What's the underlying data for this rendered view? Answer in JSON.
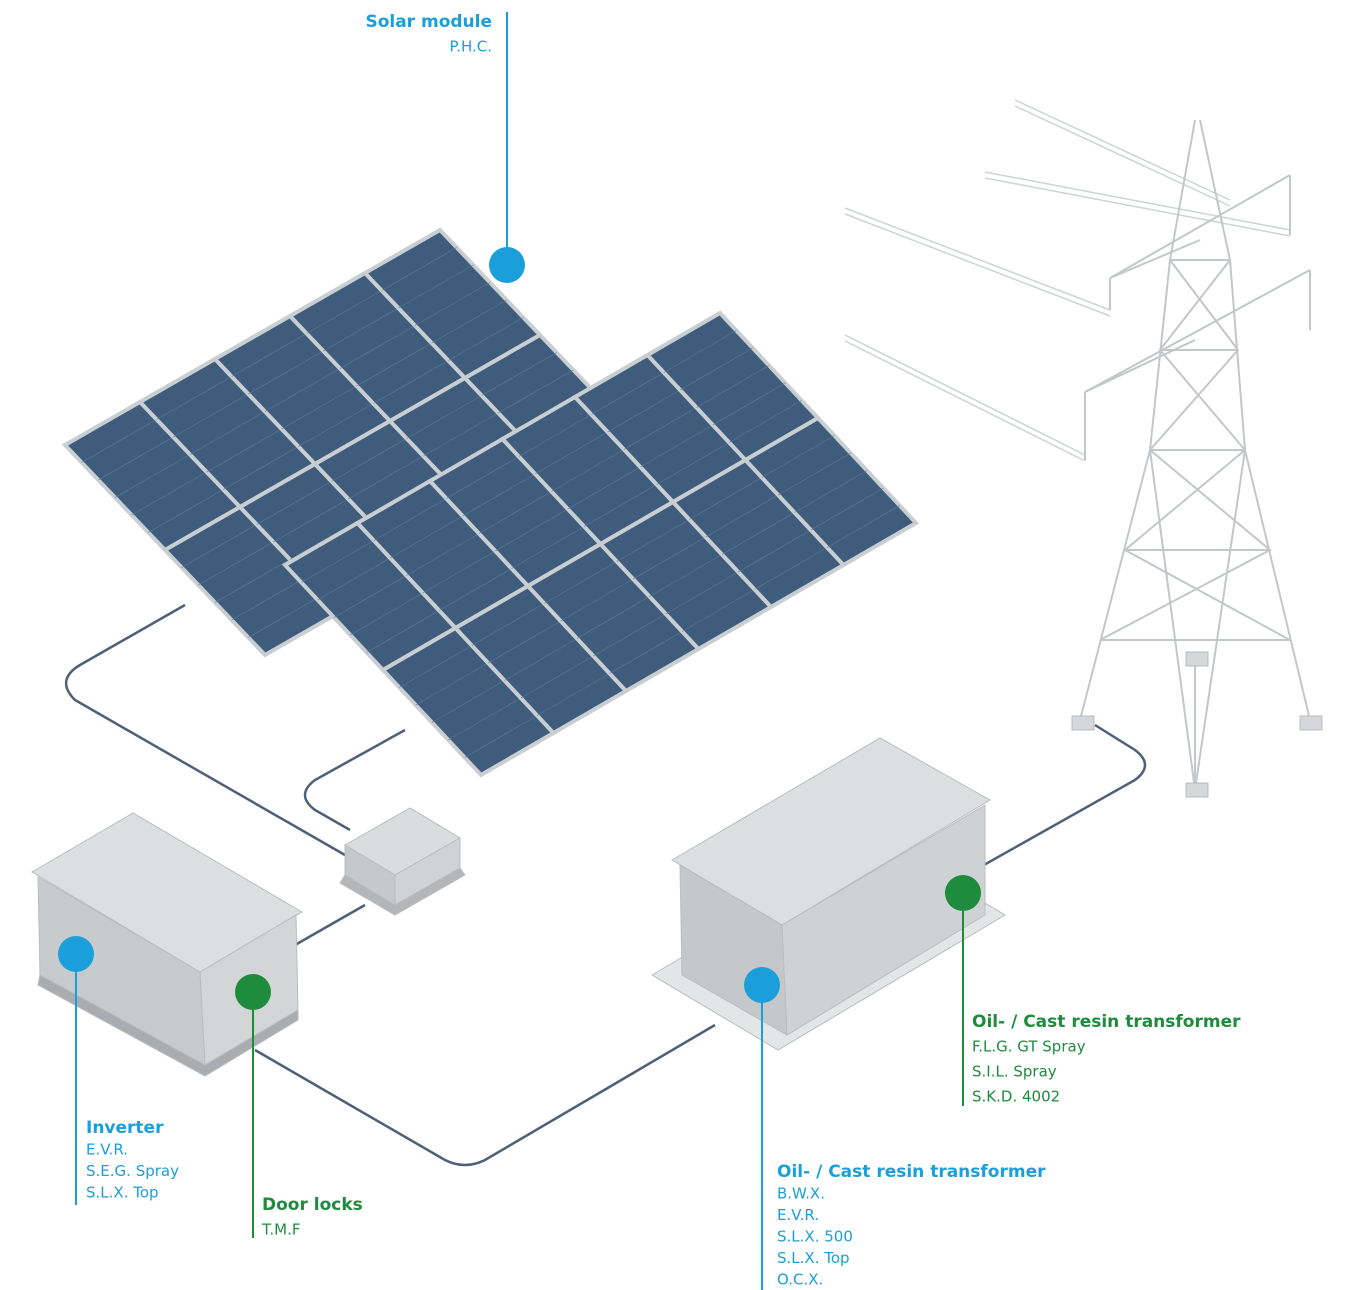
{
  "callouts": [
    {
      "title": "Solar module",
      "items": [
        "P.H.C."
      ]
    },
    {
      "title": "Inverter",
      "items": [
        "E.V.R.",
        "S.E.G. Spray",
        "S.L.X. Top"
      ]
    },
    {
      "title": "Door locks",
      "items": [
        "T.M.F"
      ]
    },
    {
      "title": "Oil- / Cast resin transformer",
      "items": [
        "B.W.X.",
        "E.V.R.",
        "S.L.X. 500",
        "S.L.X. Top",
        "O.C.X."
      ]
    },
    {
      "title": "Oil- / Cast resin transformer",
      "items": [
        "F.L.G. GT Spray",
        "S.I.L. Spray",
        "S.K.D. 4002"
      ]
    }
  ]
}
